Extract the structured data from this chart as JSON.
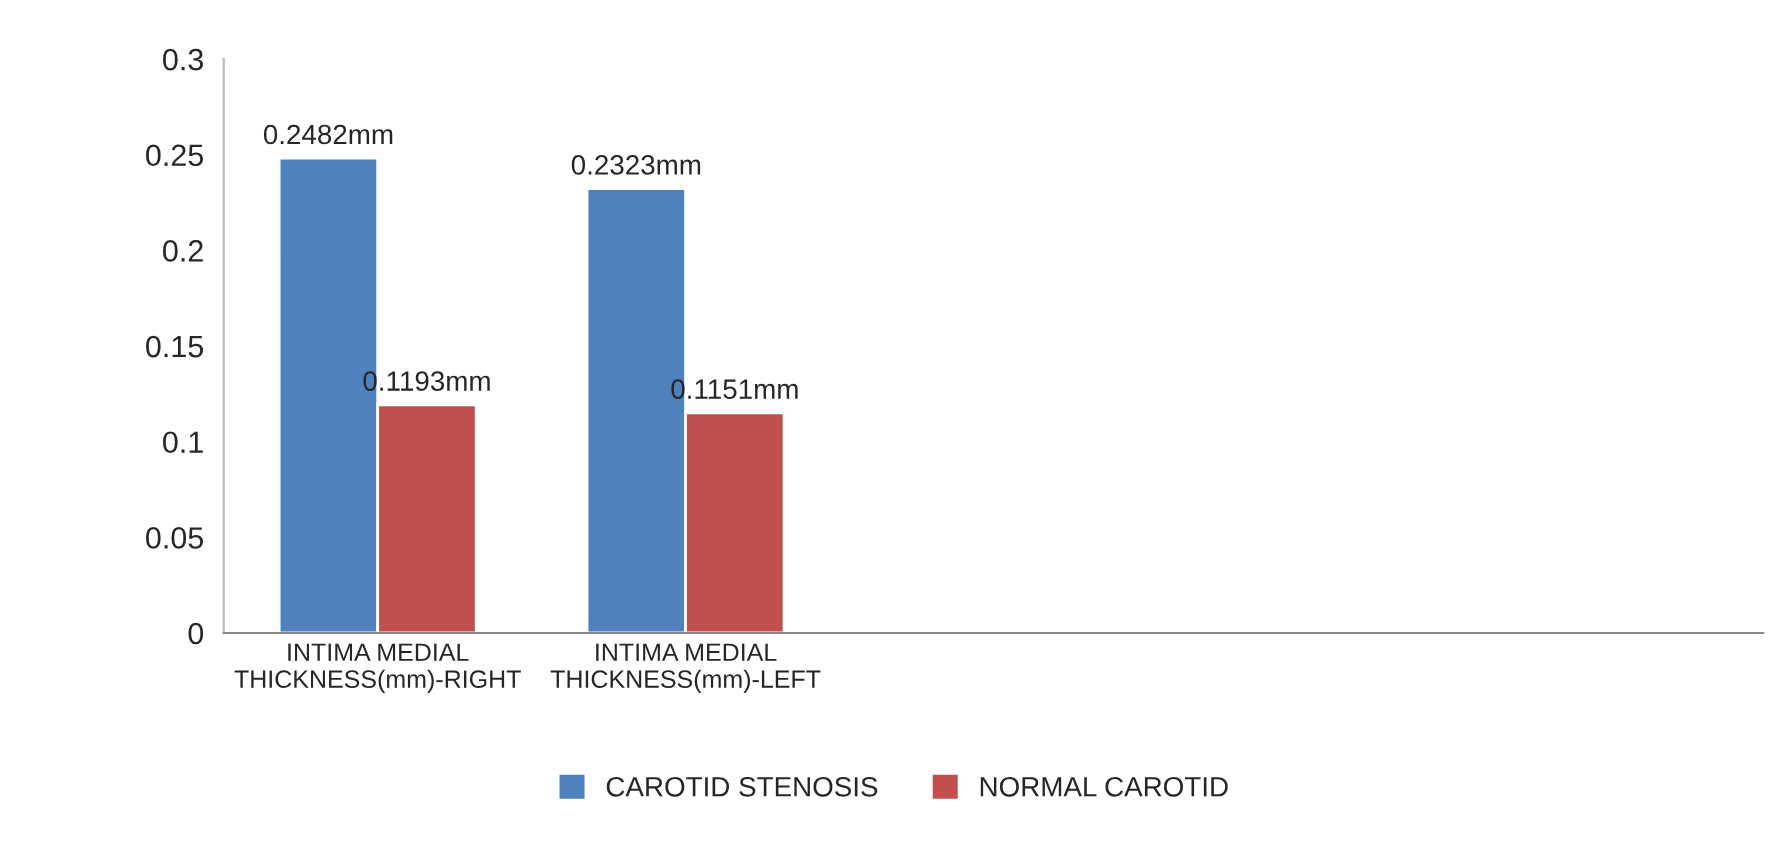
{
  "chart_data": {
    "type": "bar",
    "categories": [
      "INTIMA MEDIAL\nTHICKNESS(mm)-RIGHT",
      "INTIMA MEDIAL\nTHICKNESS(mm)-LEFT",
      null,
      null,
      null
    ],
    "series": [
      {
        "name": "CAROTID STENOSIS",
        "color": "#4f81bd",
        "values": [
          0.2482,
          0.2323,
          null,
          null,
          null
        ],
        "value_labels": [
          "0.2482mm",
          "0.2323mm",
          null,
          null,
          null
        ]
      },
      {
        "name": "NORMAL CAROTID",
        "color": "#c0504d",
        "values": [
          0.1193,
          0.1151,
          null,
          null,
          null
        ],
        "value_labels": [
          "0.1193mm",
          "0.1151mm",
          null,
          null,
          null
        ]
      }
    ],
    "ylim": [
      0,
      0.3
    ],
    "yticks": [
      0,
      0.05,
      0.1,
      0.15,
      0.2,
      0.25,
      0.3
    ],
    "grid": false,
    "legend": "bottom"
  }
}
